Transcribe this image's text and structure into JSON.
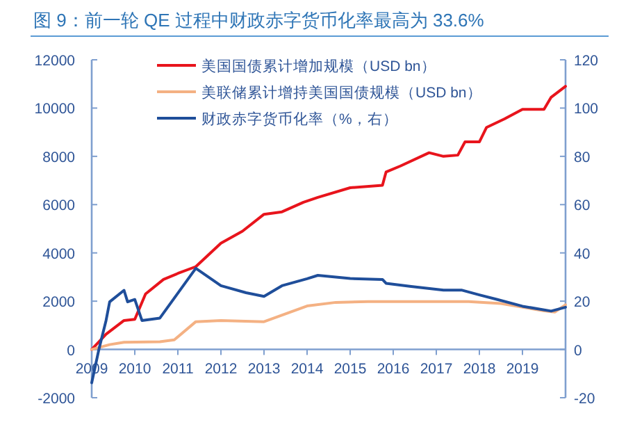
{
  "chart_data": {
    "type": "line",
    "title": "图 9：前一轮 QE 过程中财政赤字货币化率最高为 33.6%",
    "xlim": [
      "2009-01",
      "2020-01"
    ],
    "xticks": [
      {
        "value": "2009",
        "label": "2009"
      },
      {
        "value": "2010",
        "label": "2010"
      },
      {
        "value": "2011",
        "label": "2011"
      },
      {
        "value": "2012",
        "label": "2012"
      },
      {
        "value": "2013",
        "label": "2013"
      },
      {
        "value": "2014",
        "label": "2014"
      },
      {
        "value": "2015",
        "label": "2015"
      },
      {
        "value": "2016",
        "label": "2016"
      },
      {
        "value": "2017",
        "label": "2017"
      },
      {
        "value": "2018",
        "label": "2018"
      },
      {
        "value": "2019",
        "label": "2019"
      }
    ],
    "ylim": [
      -2000,
      12000
    ],
    "yticks": [
      -2000,
      0,
      2000,
      4000,
      6000,
      8000,
      10000,
      12000
    ],
    "y2lim": [
      -20,
      120
    ],
    "y2ticks": [
      -20,
      0,
      20,
      40,
      60,
      80,
      100,
      120
    ],
    "legend": "top left",
    "series": [
      {
        "name": "美国国债累计增加规模（USD bn）",
        "color": "#e8141c",
        "x": [
          "2009-01",
          "2009-05",
          "2009-10",
          "2010-01",
          "2010-04",
          "2010-09",
          "2011-01",
          "2011-06",
          "2012-01",
          "2012-07",
          "2013-01",
          "2013-06",
          "2013-12",
          "2014-04",
          "2015-01",
          "2015-10",
          "2015-11",
          "2016-03",
          "2016-11",
          "2017-03",
          "2017-07",
          "2017-09",
          "2018-01",
          "2018-03",
          "2018-08",
          "2019-01",
          "2019-07",
          "2019-09",
          "2020-01"
        ],
        "values": [
          0,
          630,
          1200,
          1250,
          2300,
          2900,
          3150,
          3430,
          4400,
          4900,
          5600,
          5700,
          6100,
          6300,
          6700,
          6800,
          7350,
          7600,
          8150,
          8000,
          8050,
          8600,
          8600,
          9200,
          9550,
          9950,
          9950,
          10450,
          10900
        ]
      },
      {
        "name": "美联储累计增持美国国债规模（USD bn）",
        "color": "#f4b183",
        "x": [
          "2009-01",
          "2009-06",
          "2009-10",
          "2010-08",
          "2010-12",
          "2011-06",
          "2012-01",
          "2013-01",
          "2014-01",
          "2014-09",
          "2015-06",
          "2017-10",
          "2018-07",
          "2019-07",
          "2019-10",
          "2020-01"
        ],
        "values": [
          0,
          200,
          300,
          320,
          400,
          1150,
          1200,
          1150,
          1800,
          1950,
          1980,
          1980,
          1900,
          1600,
          1550,
          1850
        ]
      },
      {
        "name": "财政赤字货币化率（%，右）",
        "color": "#1f4e9a",
        "axis": "y2",
        "x": [
          "2009-01",
          "2009-03",
          "2009-05",
          "2009-06",
          "2009-10",
          "2009-11",
          "2010-01",
          "2010-03",
          "2010-08",
          "2011-06",
          "2012-01",
          "2012-08",
          "2013-01",
          "2013-06",
          "2014-01",
          "2014-04",
          "2015-01",
          "2015-10",
          "2015-11",
          "2016-06",
          "2017-03",
          "2017-08",
          "2018-01",
          "2018-06",
          "2019-01",
          "2019-09",
          "2020-01"
        ],
        "values": [
          -13.8,
          0,
          12,
          19.7,
          24.5,
          19.7,
          20.7,
          12,
          13,
          33.6,
          26.4,
          23.5,
          22,
          26.4,
          29.3,
          30.7,
          29.4,
          29,
          27.4,
          26.1,
          24.6,
          24.6,
          22.6,
          20.7,
          17.9,
          15.9,
          17.5
        ]
      }
    ]
  }
}
